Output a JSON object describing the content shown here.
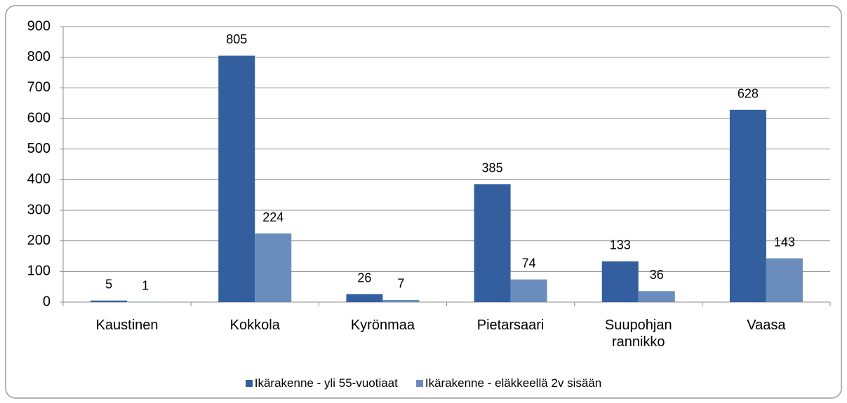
{
  "chart_data": {
    "type": "bar",
    "categories": [
      "Kaustinen",
      "Kokkola",
      "Kyrönmaa",
      "Pietarsaari",
      "Suupohjan rannikko",
      "Vaasa"
    ],
    "series": [
      {
        "name": "Ikärakenne - yli 55-vuotiaat",
        "color": "#335f9e",
        "values": [
          5,
          805,
          26,
          385,
          133,
          628
        ]
      },
      {
        "name": "Ikärakenne - eläkkeellä 2v sisään",
        "color": "#6a8dbd",
        "values": [
          1,
          224,
          7,
          74,
          36,
          143
        ]
      }
    ],
    "ylim": [
      0,
      900
    ],
    "yticks": [
      0,
      100,
      200,
      300,
      400,
      500,
      600,
      700,
      800,
      900
    ],
    "grid": true,
    "legend": "bottom"
  }
}
